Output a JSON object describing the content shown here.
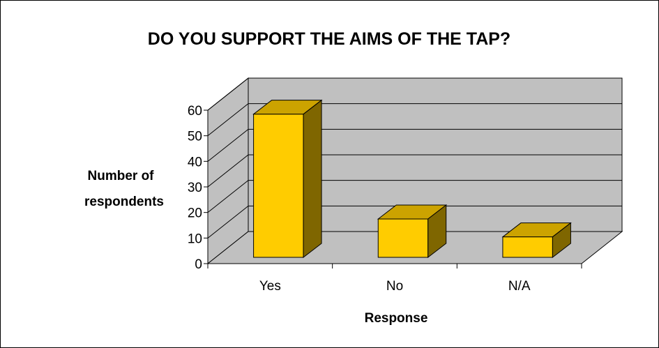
{
  "chart_data": {
    "type": "bar",
    "title": "DO YOU SUPPORT THE AIMS OF THE TAP?",
    "xlabel": "Response",
    "ylabel_lines": [
      "Number of",
      "respondents"
    ],
    "categories": [
      "Yes",
      "No",
      "N/A"
    ],
    "values": [
      56,
      15,
      8
    ],
    "ylim": [
      0,
      60
    ],
    "yticks": [
      0,
      10,
      20,
      30,
      40,
      50,
      60
    ],
    "grid": true,
    "legend": "none",
    "style": "3d-column"
  },
  "colors": {
    "bar_front": "#FFCC00",
    "bar_top": "#CCA300",
    "bar_side": "#7F6600",
    "back_wall": "#C0C0C0",
    "floor": "#C0C0C0",
    "side_wall": "#C0C0C0",
    "gridline": "#000000",
    "outline": "#000000"
  }
}
